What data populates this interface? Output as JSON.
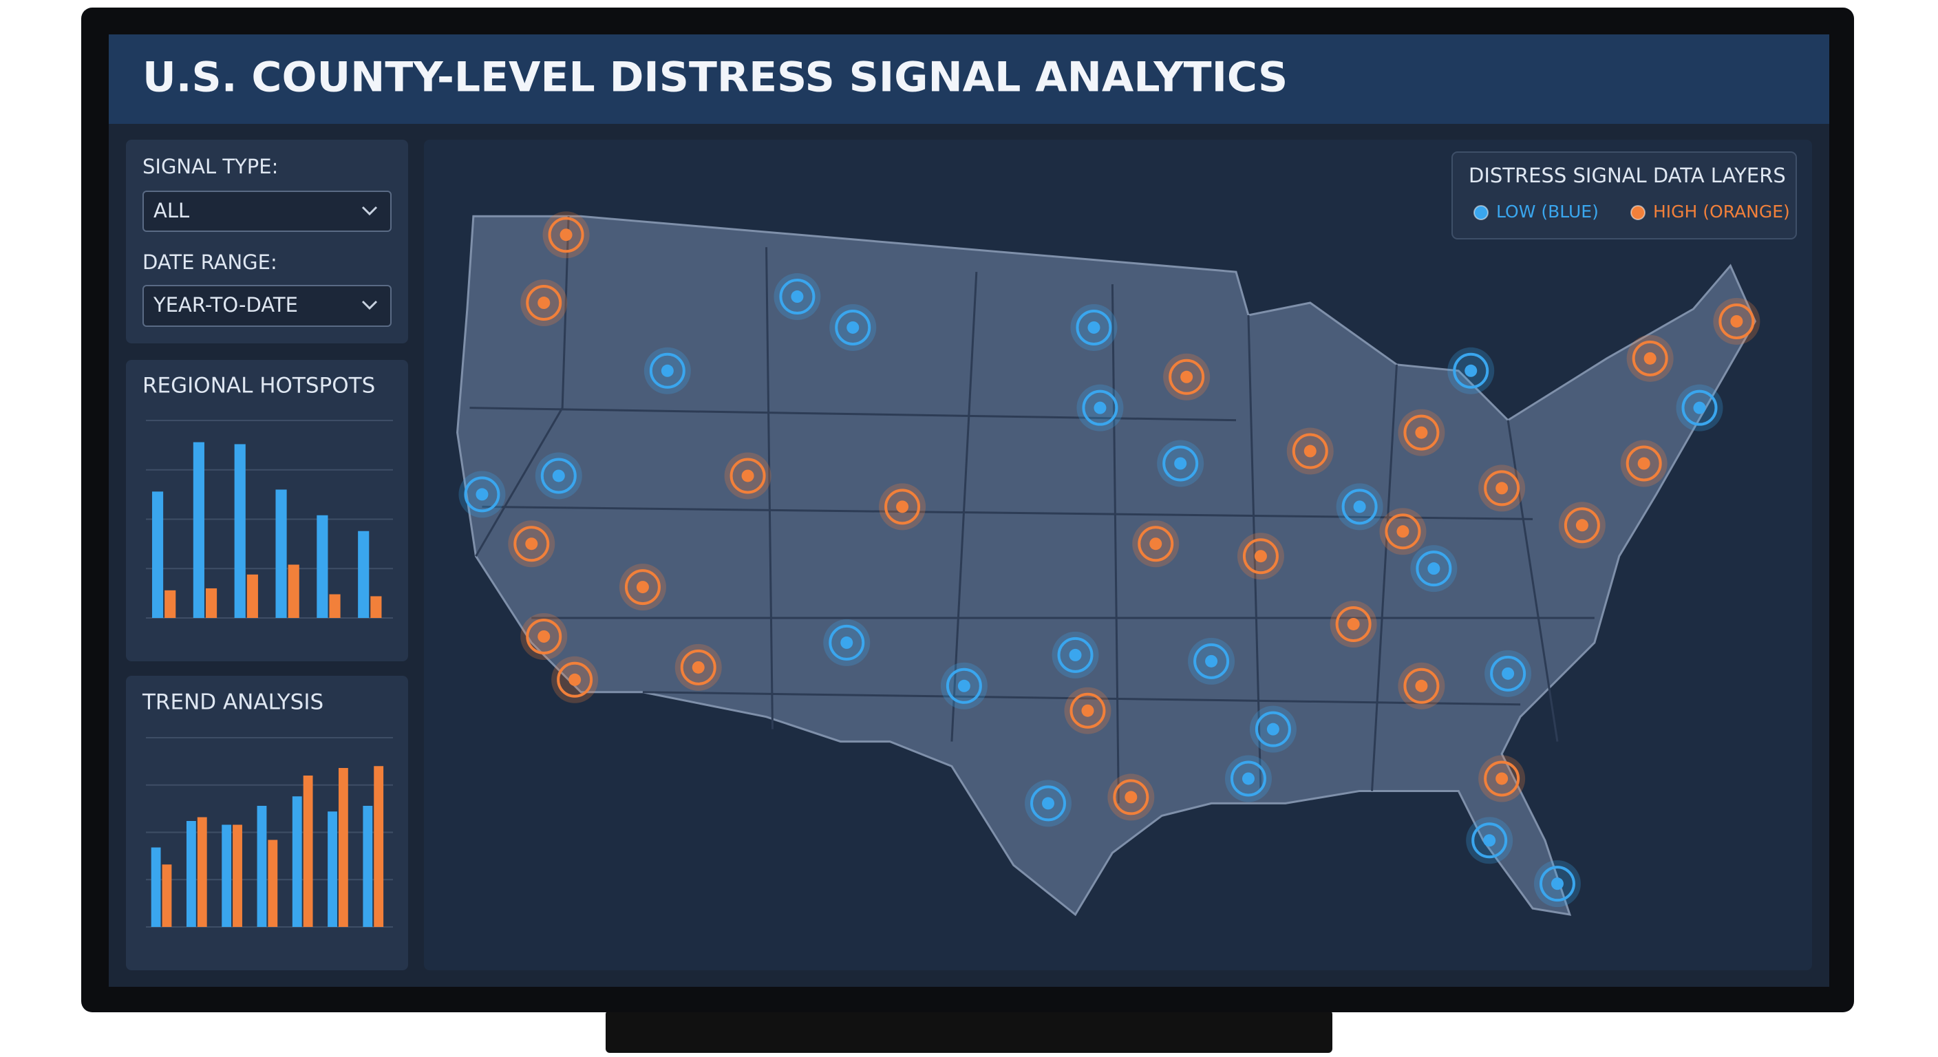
{
  "header": {
    "title": "U.S. COUNTY-LEVEL DISTRESS SIGNAL ANALYTICS"
  },
  "filters": [
    {
      "label": "SIGNAL TYPE:",
      "value": "ALL"
    },
    {
      "label": "DATE RANGE:",
      "value": "YEAR-TO-DATE"
    }
  ],
  "legend": {
    "title": "DISTRESS SIGNAL DATA LAYERS",
    "items": [
      {
        "label": "LOW (BLUE)",
        "color": "#3aa6ee"
      },
      {
        "label": "HIGH (ORANGE)",
        "color": "#f2803a"
      }
    ]
  },
  "chart_data": [
    {
      "type": "bar",
      "title": "REGIONAL HOTSPOTS",
      "ylim": [
        0,
        100
      ],
      "grid": true,
      "series": [
        {
          "color": "#3aa6ee",
          "values": [
            64,
            89,
            88,
            65,
            52,
            44
          ]
        },
        {
          "color": "#f2803a",
          "values": [
            14,
            15,
            22,
            27,
            12,
            11
          ]
        }
      ]
    },
    {
      "type": "bar",
      "title": "TREND ANALYSIS",
      "ylim": [
        0,
        100
      ],
      "grid": true,
      "series": [
        {
          "color": "#3aa6ee",
          "values": [
            42,
            56,
            54,
            64,
            69,
            61,
            64
          ]
        },
        {
          "color": "#f2803a",
          "values": [
            33,
            58,
            54,
            46,
            80,
            84,
            85
          ]
        }
      ]
    }
  ]
}
